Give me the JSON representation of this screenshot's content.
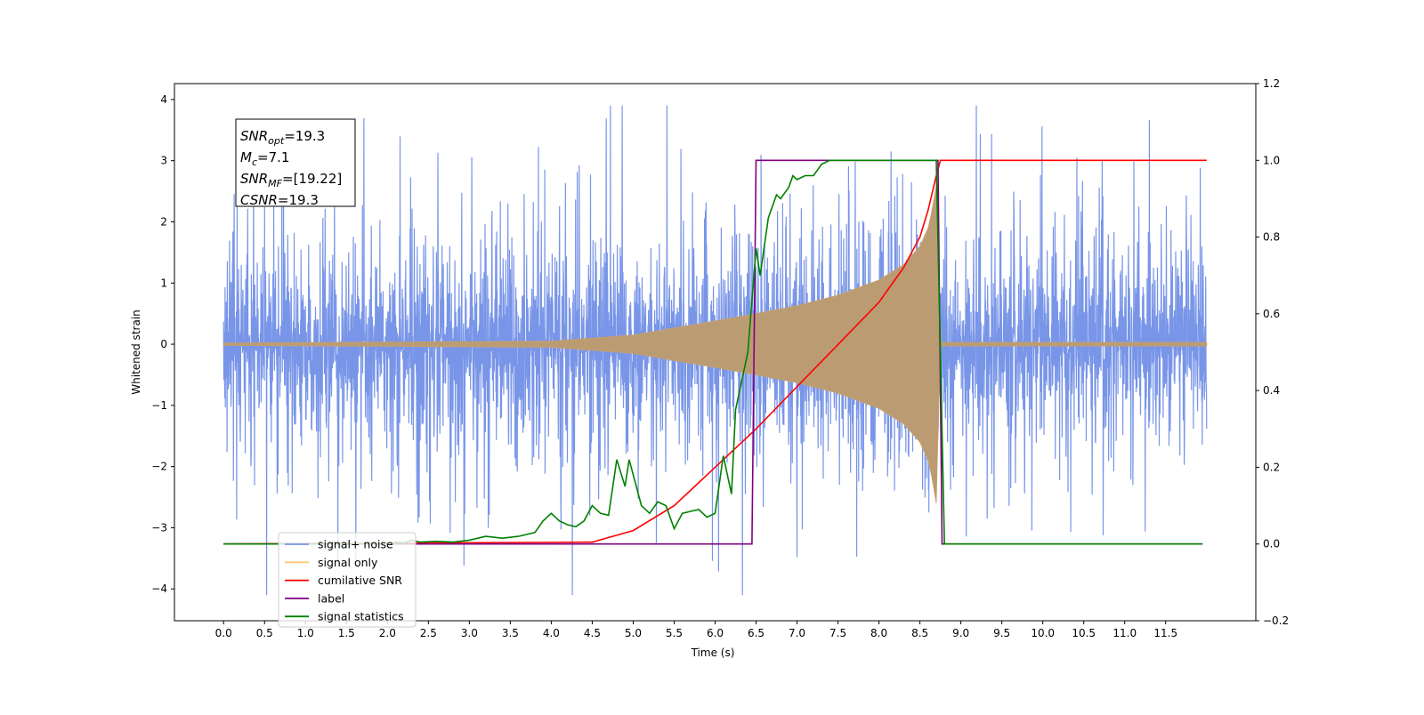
{
  "chart_data": {
    "type": "line",
    "xlabel": "Time (s)",
    "ylabel": "Whitened strain",
    "xlim": [
      -0.6,
      12.6
    ],
    "ylim": [
      -4.52,
      4.26
    ],
    "y2lim": [
      -0.2,
      1.2
    ],
    "x_ticks": [
      "0.0",
      "0.5",
      "1.0",
      "1.5",
      "2.0",
      "2.5",
      "3.0",
      "3.5",
      "4.0",
      "4.5",
      "5.0",
      "5.5",
      "6.0",
      "6.5",
      "7.0",
      "7.5",
      "8.0",
      "8.5",
      "9.0",
      "9.5",
      "10.0",
      "10.5",
      "11.0",
      "11.5"
    ],
    "y_ticks": [
      "4",
      "3",
      "2",
      "1",
      "0",
      "−1",
      "−2",
      "−3",
      "−4"
    ],
    "y_tick_values": [
      4,
      3,
      2,
      1,
      0,
      -1,
      -2,
      -3,
      -4
    ],
    "y2_ticks": [
      "1.2",
      "1.0",
      "0.8",
      "0.6",
      "0.4",
      "0.2",
      "0.0",
      "−0.2"
    ],
    "y2_tick_values": [
      1.2,
      1.0,
      0.8,
      0.6,
      0.4,
      0.2,
      0.0,
      -0.2
    ],
    "grid": false,
    "legend_placement": "lower-left",
    "annotation": {
      "lines": [
        {
          "base": "SNR",
          "sub": "opt",
          "value": "=19.3"
        },
        {
          "base": "M",
          "sub": "c",
          "value": "=7.1"
        },
        {
          "base": "SNR",
          "sub": "MF",
          "value": "=[19.22]"
        },
        {
          "base": "CSNR",
          "sub": "",
          "value": "=19.3"
        }
      ]
    },
    "series": [
      {
        "name": "signal+ noise",
        "color": "#7895e8",
        "axis": "left",
        "x_range": [
          0,
          12
        ],
        "amplitude_range": [
          -4.1,
          3.9
        ]
      },
      {
        "name": "signal only",
        "color": "#ffc870",
        "axis": "left",
        "envelope": {
          "x": [
            0,
            4.0,
            5.0,
            6.0,
            6.5,
            7.0,
            7.5,
            8.0,
            8.3,
            8.5,
            8.6,
            8.65,
            8.7,
            8.72,
            8.75,
            12
          ],
          "y": [
            0.02,
            0.05,
            0.15,
            0.38,
            0.5,
            0.63,
            0.8,
            1.05,
            1.3,
            1.6,
            1.9,
            2.2,
            2.6,
            1.5,
            0.03,
            0.03
          ]
        }
      },
      {
        "name": "cumilative SNR",
        "color": "#ff0000",
        "axis": "right",
        "x": [
          0,
          4.5,
          5.0,
          5.5,
          6.0,
          6.5,
          7.0,
          7.5,
          8.0,
          8.3,
          8.5,
          8.6,
          8.7,
          8.75,
          12
        ],
        "y": [
          0,
          0.005,
          0.035,
          0.1,
          0.2,
          0.3,
          0.41,
          0.52,
          0.63,
          0.72,
          0.8,
          0.87,
          0.96,
          1.0,
          1.0
        ]
      },
      {
        "name": "label",
        "color": "#800080",
        "axis": "right",
        "x": [
          0,
          6.45,
          6.5,
          8.72,
          8.77,
          11.95
        ],
        "y": [
          0,
          0,
          1,
          1,
          0,
          0
        ]
      },
      {
        "name": "signal statistics",
        "color": "#008000",
        "axis": "right",
        "x": [
          0,
          2.0,
          2.1,
          2.2,
          2.3,
          2.4,
          2.6,
          2.8,
          3.0,
          3.2,
          3.4,
          3.6,
          3.8,
          3.9,
          4.0,
          4.1,
          4.2,
          4.3,
          4.4,
          4.5,
          4.6,
          4.7,
          4.8,
          4.9,
          4.95,
          5.0,
          5.1,
          5.2,
          5.3,
          5.4,
          5.5,
          5.6,
          5.7,
          5.8,
          5.9,
          6.0,
          6.1,
          6.2,
          6.25,
          6.4,
          6.5,
          6.55,
          6.65,
          6.75,
          6.8,
          6.9,
          6.95,
          7.0,
          7.1,
          7.2,
          7.3,
          7.4,
          7.6,
          8.7,
          8.8,
          11.95
        ],
        "y": [
          0,
          0,
          0.005,
          0.003,
          0.01,
          0.005,
          0.007,
          0.005,
          0.01,
          0.02,
          0.015,
          0.02,
          0.03,
          0.06,
          0.08,
          0.06,
          0.05,
          0.045,
          0.06,
          0.1,
          0.08,
          0.075,
          0.22,
          0.15,
          0.22,
          0.18,
          0.1,
          0.08,
          0.11,
          0.1,
          0.04,
          0.08,
          0.085,
          0.09,
          0.07,
          0.08,
          0.23,
          0.13,
          0.35,
          0.5,
          0.77,
          0.7,
          0.85,
          0.91,
          0.9,
          0.93,
          0.96,
          0.95,
          0.96,
          0.96,
          0.99,
          1.0,
          1.0,
          1.0,
          0,
          0
        ]
      }
    ]
  }
}
